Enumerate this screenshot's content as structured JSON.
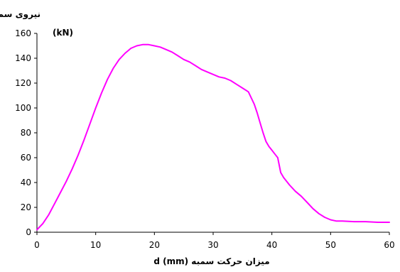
{
  "chart_data": {
    "type": "line",
    "title": "",
    "ylabel_line1": "نیروی سمبه ، Fp",
    "ylabel_line2": "(kN)",
    "xlabel": "میزان حرکت سمبه d (mm)",
    "xlim": [
      0,
      60
    ],
    "ylim": [
      0,
      160
    ],
    "xticks": [
      0,
      10,
      20,
      30,
      40,
      50,
      60
    ],
    "yticks": [
      0,
      20,
      40,
      60,
      80,
      100,
      120,
      140,
      160
    ],
    "grid": false,
    "line_color": "#ff00ff",
    "series": [
      {
        "x": [
          0,
          1,
          2,
          3,
          4,
          5,
          6,
          7,
          8,
          9,
          10,
          11,
          12,
          13,
          14,
          15,
          16,
          17,
          18,
          19,
          20,
          21,
          22,
          23,
          24,
          25,
          26,
          27,
          28,
          29,
          30,
          31,
          32,
          33,
          34,
          35,
          36,
          37,
          37.5,
          38,
          38.5,
          39,
          39.5,
          40,
          40.5,
          41,
          41.5,
          42,
          43,
          44,
          45,
          46,
          47,
          48,
          49,
          50,
          51,
          52,
          54,
          56,
          58,
          60
        ],
        "y": [
          2,
          7,
          14,
          23,
          32,
          41,
          51,
          62,
          74,
          87,
          100,
          112,
          123,
          132,
          139,
          144,
          148,
          150,
          151,
          151,
          150,
          149,
          147,
          145,
          142,
          139,
          137,
          134,
          131,
          129,
          127,
          125,
          124,
          122,
          119,
          116,
          113,
          103,
          96,
          88,
          80,
          73,
          69,
          66,
          63,
          60,
          48,
          44,
          38,
          33,
          29,
          24,
          19,
          15,
          12,
          10,
          9,
          9,
          8.5,
          8.5,
          8,
          8
        ]
      }
    ]
  }
}
